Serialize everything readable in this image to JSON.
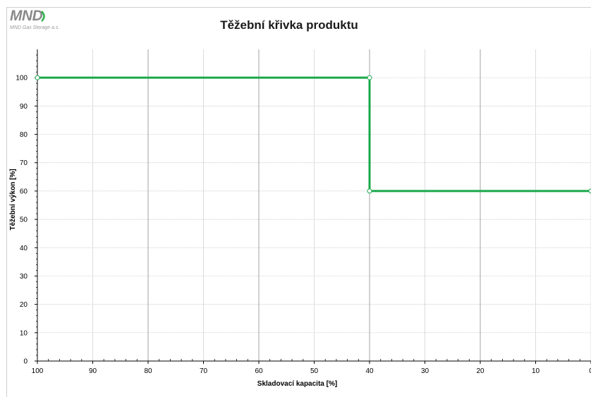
{
  "header": {
    "logo_text": "MND",
    "logo_subtitle": "MND Gas Storage a.s.",
    "logo_color": "#8a8a8a",
    "logo_accent_color": "#2fb34f"
  },
  "chart_data": {
    "type": "line",
    "title": "Těžební křivka produktu",
    "xlabel": "Skladovací kapacita [%]",
    "ylabel": "Těžební výkon [%]",
    "xlim": [
      100,
      0
    ],
    "x_reversed": true,
    "ylim": [
      0,
      110
    ],
    "xticks": [
      100,
      90,
      80,
      70,
      60,
      50,
      40,
      30,
      20,
      10,
      0
    ],
    "yticks": [
      0,
      10,
      20,
      30,
      40,
      50,
      60,
      70,
      80,
      90,
      100
    ],
    "grid": true,
    "line_style": "step",
    "series": [
      {
        "color": "#1aa84b",
        "points": [
          [
            100,
            100
          ],
          [
            40,
            100
          ],
          [
            40,
            60
          ],
          [
            0,
            60
          ]
        ]
      }
    ]
  }
}
